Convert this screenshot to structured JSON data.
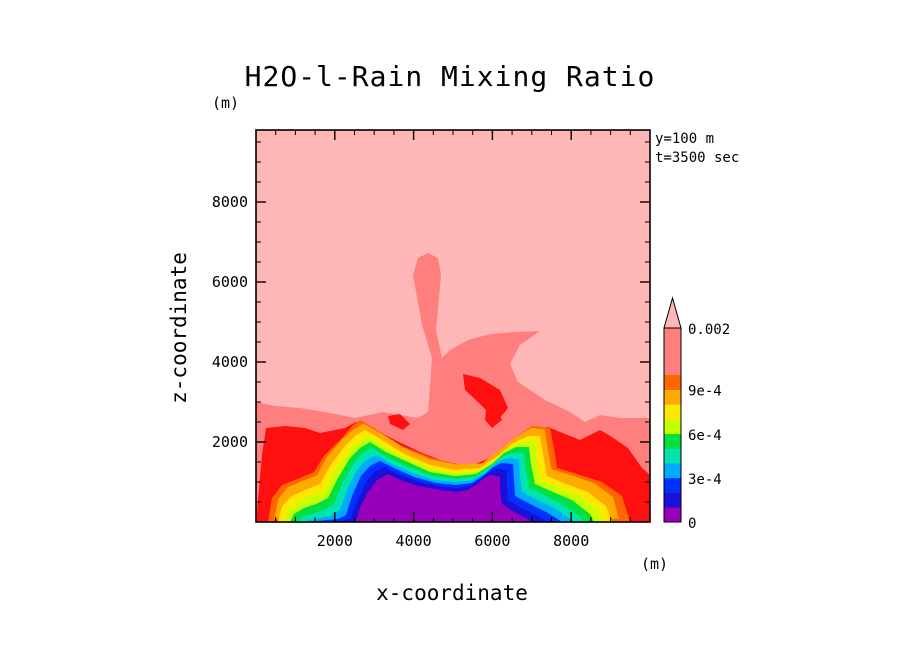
{
  "chart_data": {
    "type": "heatmap",
    "title": "H2O-l-Rain Mixing Ratio",
    "xlabel": "x-coordinate",
    "ylabel": "z-coordinate",
    "x_unit": "(m)",
    "y_unit": "(m)",
    "xlim": [
      0,
      10000
    ],
    "ylim": [
      0,
      9800
    ],
    "x_ticks": [
      2000,
      4000,
      6000,
      8000
    ],
    "y_ticks": [
      2000,
      4000,
      6000,
      8000
    ],
    "x_tick_labels": [
      "2000",
      "4000",
      "6000",
      "8000"
    ],
    "y_tick_labels": [
      "2000",
      "4000",
      "6000",
      "8000"
    ],
    "annotations": [
      "y=100 m",
      "t=3500 sec"
    ],
    "colorbar": {
      "levels": [
        0,
        0.0001,
        0.0002,
        0.0003,
        0.0004,
        0.0005,
        0.0006,
        0.0007,
        0.0008,
        0.0009,
        0.001,
        0.002
      ],
      "colors": [
        "#9900bb",
        "#1a10d8",
        "#0030ff",
        "#00aaff",
        "#00e5b0",
        "#00e040",
        "#c8ff00",
        "#ffe800",
        "#ffaa00",
        "#ff6600",
        "#ff1010",
        "#ff7f7f",
        "#ffb6b6"
      ],
      "tick_labels": [
        {
          "value": 0,
          "label": "0"
        },
        {
          "value": 0.0003,
          "label": "3e-4"
        },
        {
          "value": 0.0006,
          "label": "6e-4"
        },
        {
          "value": 0.0009,
          "label": "9e-4"
        },
        {
          "value": 0.002,
          "label": "0.002"
        }
      ],
      "extend": "max"
    }
  }
}
